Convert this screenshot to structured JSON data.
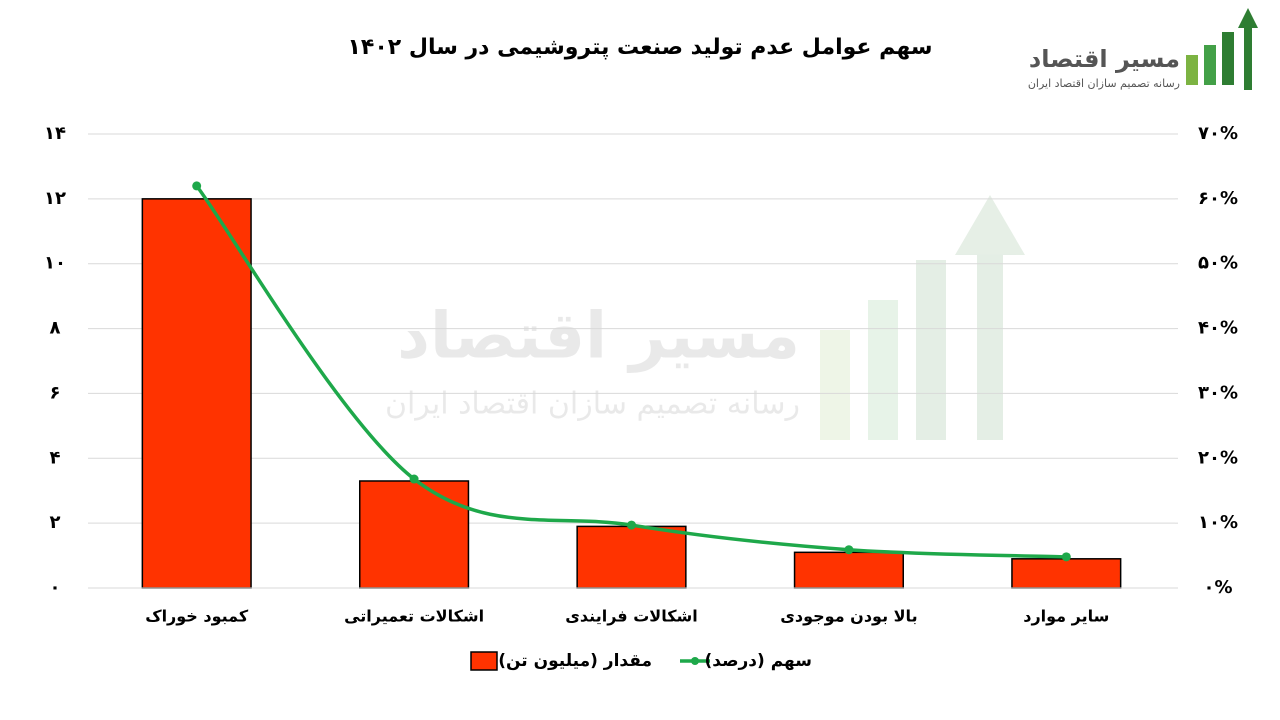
{
  "chart_data": {
    "type": "bar_line",
    "title": "سهم عوامل عدم تولید صنعت پتروشیمی در سال ۱۴۰۲",
    "logo": {
      "name": "مسیر اقتصاد",
      "tagline": "رسانه تصمیم سازان اقتصاد ایران"
    },
    "categories": [
      "کمبود خوراک",
      "اشکالات تعمیراتی",
      "اشکالات فرایندی",
      "بالا بودن موجودی",
      "سایر موارد"
    ],
    "series": [
      {
        "name": "مقدار (میلیون تن)",
        "type": "bar",
        "color": "#ff3300",
        "values": [
          12,
          3.3,
          1.9,
          1.1,
          0.9
        ]
      },
      {
        "name": "سهم (درصد)",
        "type": "line",
        "color": "#1ea84a",
        "axis": "y2",
        "values": [
          62,
          16.8,
          9.7,
          5.9,
          4.8
        ]
      }
    ],
    "ylim": [
      0,
      14
    ],
    "yticks": [
      {
        "value": 0,
        "label": "۰"
      },
      {
        "value": 2,
        "label": "۲"
      },
      {
        "value": 4,
        "label": "۴"
      },
      {
        "value": 6,
        "label": "۶"
      },
      {
        "value": 8,
        "label": "۸"
      },
      {
        "value": 10,
        "label": "۱۰"
      },
      {
        "value": 12,
        "label": "۱۲"
      },
      {
        "value": 14,
        "label": "۱۴"
      }
    ],
    "y2lim": [
      0,
      70
    ],
    "y2ticks": [
      {
        "value": 0,
        "label": "۰%"
      },
      {
        "value": 10,
        "label": "۱۰%"
      },
      {
        "value": 20,
        "label": "۲۰%"
      },
      {
        "value": 30,
        "label": "۳۰%"
      },
      {
        "value": 40,
        "label": "۴۰%"
      },
      {
        "value": 50,
        "label": "۵۰%"
      },
      {
        "value": 60,
        "label": "۶۰%"
      },
      {
        "value": 70,
        "label": "۷۰%"
      }
    ],
    "grid": true
  }
}
